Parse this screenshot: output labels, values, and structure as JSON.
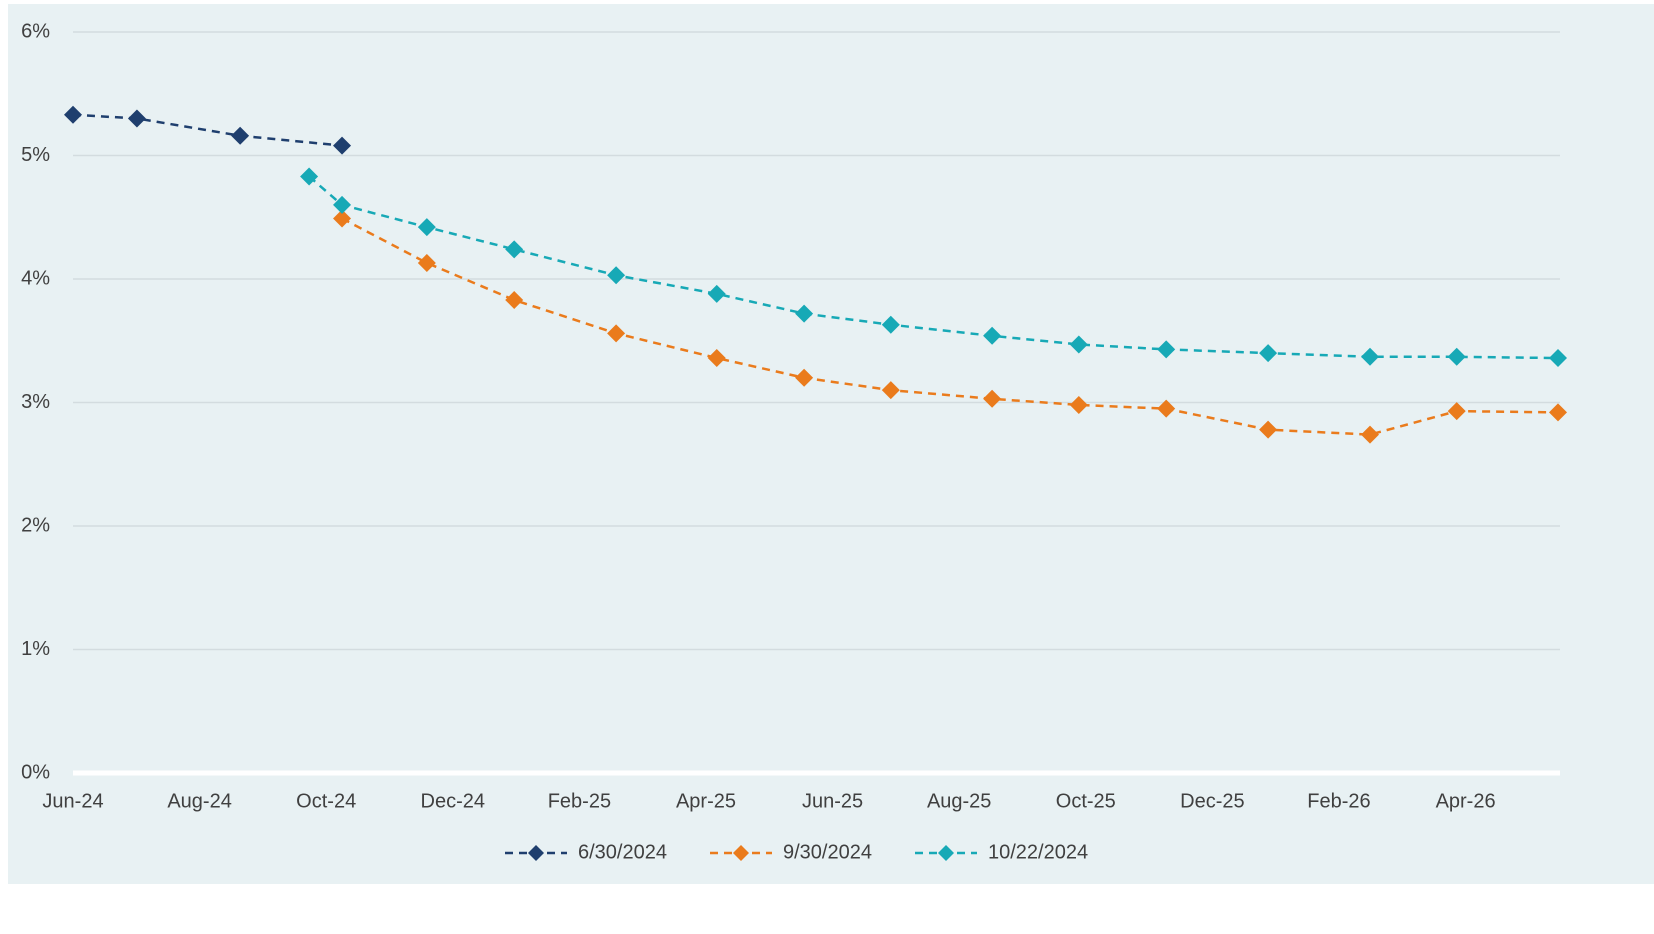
{
  "chart_data": {
    "type": "line",
    "xlim": [
      0,
      23.46
    ],
    "xticks": [
      {
        "value": 0,
        "label": "Jun-24"
      },
      {
        "value": 2,
        "label": "Aug-24"
      },
      {
        "value": 4,
        "label": "Oct-24"
      },
      {
        "value": 6,
        "label": "Dec-24"
      },
      {
        "value": 8,
        "label": "Feb-25"
      },
      {
        "value": 10,
        "label": "Apr-25"
      },
      {
        "value": 12,
        "label": "Jun-25"
      },
      {
        "value": 14,
        "label": "Aug-25"
      },
      {
        "value": 16,
        "label": "Oct-25"
      },
      {
        "value": 18,
        "label": "Dec-25"
      },
      {
        "value": 20,
        "label": "Feb-26"
      },
      {
        "value": 22,
        "label": "Apr-26"
      }
    ],
    "ylim": [
      0,
      6
    ],
    "yticks": [
      {
        "value": 0,
        "label": "0%"
      },
      {
        "value": 1,
        "label": "1%"
      },
      {
        "value": 2,
        "label": "2%"
      },
      {
        "value": 3,
        "label": "3%"
      },
      {
        "value": 4,
        "label": "4%"
      },
      {
        "value": 5,
        "label": "5%"
      },
      {
        "value": 6,
        "label": "6%"
      }
    ],
    "grid": true,
    "legend": "bottom",
    "series": [
      {
        "name": "6/30/2024",
        "color": "#1f3f6e",
        "x": [
          0,
          1.01,
          2.64,
          4.25
        ],
        "values": [
          5.33,
          5.3,
          5.16,
          5.08
        ]
      },
      {
        "name": "9/30/2024",
        "color": "#ea7b1c",
        "x": [
          4.25,
          5.59,
          6.97,
          8.58,
          10.17,
          11.55,
          12.92,
          14.52,
          15.89,
          17.27,
          18.88,
          20.49,
          21.86,
          23.46
        ],
        "values": [
          4.49,
          4.13,
          3.83,
          3.56,
          3.36,
          3.2,
          3.1,
          3.03,
          2.98,
          2.95,
          2.78,
          2.74,
          2.93,
          2.92
        ]
      },
      {
        "name": "10/22/2024",
        "color": "#17a9b6",
        "x": [
          3.73,
          4.25,
          5.59,
          6.97,
          8.58,
          10.17,
          11.55,
          12.92,
          14.52,
          15.89,
          17.27,
          18.88,
          20.49,
          21.86,
          23.46
        ],
        "values": [
          4.83,
          4.6,
          4.42,
          4.24,
          4.03,
          3.88,
          3.72,
          3.63,
          3.54,
          3.47,
          3.43,
          3.4,
          3.37,
          3.37,
          3.36
        ]
      }
    ]
  }
}
